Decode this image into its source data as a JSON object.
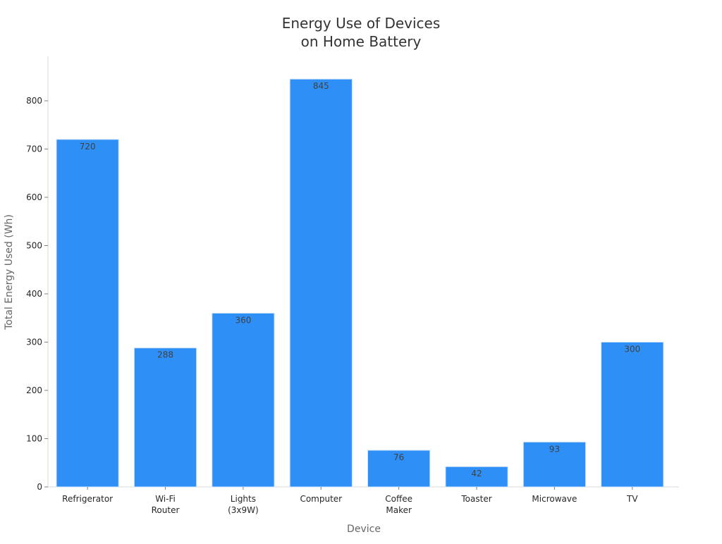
{
  "chart_data": {
    "type": "bar",
    "title": [
      "Energy Use of Devices",
      "on Home Battery"
    ],
    "xlabel": "Device",
    "ylabel": "Total Energy Used (Wh)",
    "categories": [
      [
        "Refrigerator"
      ],
      [
        "Wi-Fi",
        "Router"
      ],
      [
        "Lights",
        "(3x9W)"
      ],
      [
        "Computer"
      ],
      [
        "Coffee",
        "Maker"
      ],
      [
        "Toaster"
      ],
      [
        "Microwave"
      ],
      [
        "TV"
      ]
    ],
    "values": [
      720,
      288,
      360,
      845,
      76,
      42,
      93,
      300
    ],
    "ylim": [
      0,
      892
    ],
    "yticks": [
      0,
      100,
      200,
      300,
      400,
      500,
      600,
      700,
      800
    ],
    "grid": false,
    "legend": "none",
    "bar_color": "#2e90f7",
    "bar_edge_color": "#cfe4fb"
  }
}
